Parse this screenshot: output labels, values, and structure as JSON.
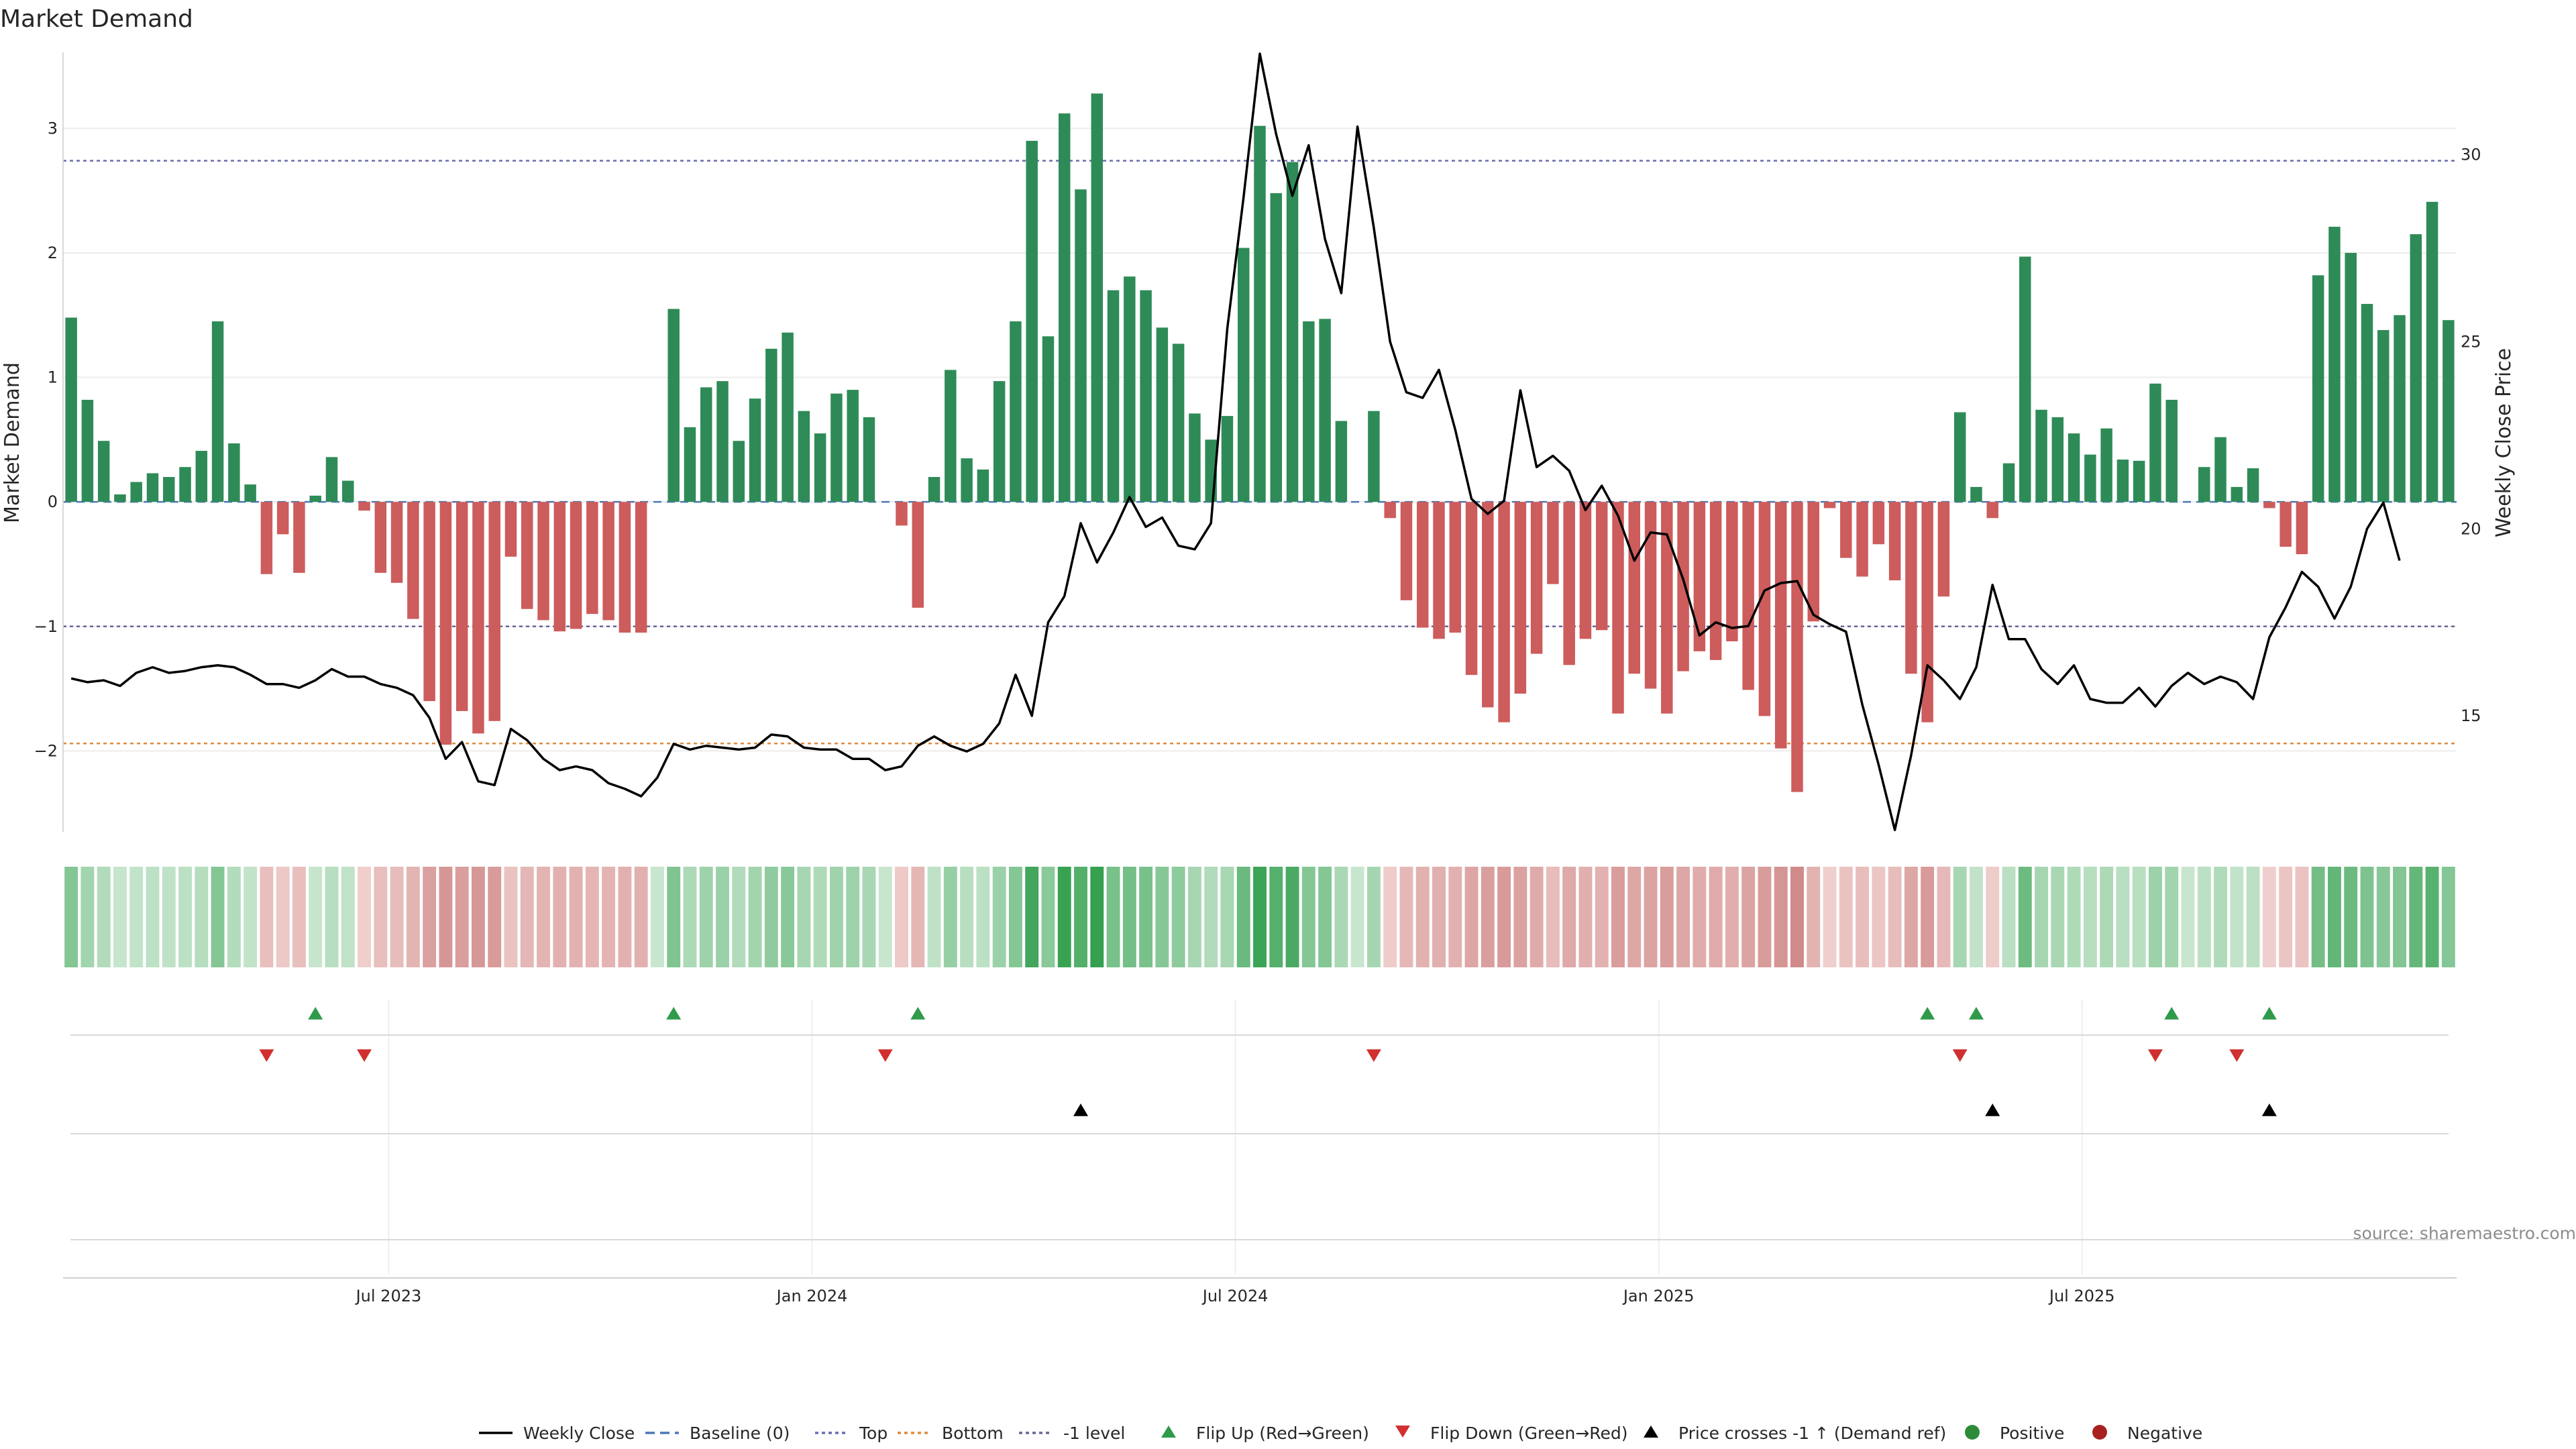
{
  "chart_data": {
    "type": "bar",
    "title": "Market Demand",
    "ylabel": "Market Demand",
    "y2label": "Weekly Close Price",
    "ylim": [
      -2.65,
      3.6
    ],
    "y2lim": [
      11.9,
      32.7
    ],
    "yticks": [
      "−2",
      "−1",
      "0",
      "1",
      "2",
      "3"
    ],
    "y2ticks": [
      "15",
      "20",
      "25",
      "30"
    ],
    "xticks": [
      "Jul 2023",
      "Jan 2024",
      "Jul 2024",
      "Jan 2025",
      "Jul 2025"
    ],
    "grid": true,
    "reference_lines": {
      "baseline": 0,
      "top": 2.74,
      "bottom": -1.94,
      "minus_one_level": -1
    },
    "demand": [
      1.48,
      0.82,
      0.49,
      0.06,
      0.16,
      0.23,
      0.2,
      0.28,
      0.41,
      1.45,
      0.47,
      0.14,
      -0.58,
      -0.26,
      -0.57,
      0.05,
      0.36,
      0.17,
      -0.07,
      -0.57,
      -0.65,
      -0.94,
      -1.6,
      -1.95,
      -1.68,
      -1.86,
      -1.76,
      -0.44,
      -0.86,
      -0.95,
      -1.04,
      -1.02,
      -0.9,
      -0.95,
      -1.05,
      -1.05,
      0,
      1.55,
      0.6,
      0.92,
      0.97,
      0.49,
      0.83,
      1.23,
      1.36,
      0.73,
      0.55,
      0.87,
      0.9,
      0.68,
      0,
      -0.19,
      -0.85,
      0.2,
      1.06,
      0.35,
      0.26,
      0.97,
      1.45,
      2.9,
      1.33,
      3.12,
      2.51,
      3.28,
      1.7,
      1.81,
      1.7,
      1.4,
      1.27,
      0.71,
      0.5,
      0.69,
      2.04,
      3.02,
      2.48,
      2.73,
      1.45,
      1.47,
      0.65,
      0,
      0.73,
      -0.13,
      -0.79,
      -1.01,
      -1.1,
      -1.05,
      -1.39,
      -1.65,
      -1.77,
      -1.54,
      -1.22,
      -0.66,
      -1.31,
      -1.1,
      -1.03,
      -1.7,
      -1.38,
      -1.5,
      -1.7,
      -1.36,
      -1.2,
      -1.27,
      -1.12,
      -1.51,
      -1.72,
      -1.98,
      -2.33,
      -0.96,
      -0.05,
      -0.45,
      -0.6,
      -0.34,
      -0.63,
      -1.38,
      -1.77,
      -0.76,
      0.72,
      0.12,
      -0.13,
      0.31,
      1.97,
      0.74,
      0.68,
      0.55,
      0.38,
      0.59,
      0.34,
      0.33,
      0.95,
      0.82,
      0,
      0.28,
      0.52,
      0.12,
      0.27,
      -0.05,
      -0.36,
      -0.42,
      1.82,
      2.21,
      2.0,
      1.59,
      1.38,
      1.5,
      2.15,
      2.41,
      1.46
    ],
    "series": [
      {
        "name": "Weekly Close",
        "values": [
          16.0,
          15.9,
          15.95,
          15.8,
          16.15,
          16.3,
          16.15,
          16.2,
          16.3,
          16.35,
          16.3,
          16.1,
          15.85,
          15.85,
          15.75,
          15.95,
          16.25,
          16.05,
          16.05,
          15.85,
          15.75,
          15.55,
          14.95,
          13.85,
          14.3,
          13.25,
          13.15,
          14.65,
          14.35,
          13.85,
          13.55,
          13.65,
          13.55,
          13.2,
          13.05,
          12.85,
          13.35,
          14.25,
          14.1,
          14.2,
          14.15,
          14.1,
          14.15,
          14.5,
          14.45,
          14.15,
          14.1,
          14.1,
          13.85,
          13.85,
          13.55,
          13.65,
          14.2,
          14.45,
          14.2,
          14.05,
          14.25,
          14.8,
          16.1,
          15.0,
          17.5,
          18.2,
          20.15,
          19.1,
          19.9,
          20.85,
          20.05,
          20.3,
          19.55,
          19.45,
          20.15,
          25.35,
          28.85,
          32.7,
          30.55,
          28.9,
          30.25,
          27.75,
          26.3,
          30.75,
          28.05,
          25.0,
          23.65,
          23.5,
          24.25,
          22.65,
          20.8,
          20.4,
          20.75,
          23.7,
          21.65,
          21.95,
          21.55,
          20.5,
          21.15,
          20.35,
          19.15,
          19.9,
          19.85,
          18.65,
          17.15,
          17.5,
          17.35,
          17.4,
          18.35,
          18.55,
          18.6,
          17.7,
          17.45,
          17.25,
          15.3,
          13.7,
          11.95,
          13.95,
          16.35,
          15.95,
          15.45,
          16.3,
          18.5,
          17.05,
          17.05,
          16.25,
          15.85,
          16.35,
          15.45,
          15.35,
          15.35,
          15.75,
          15.25,
          15.8,
          16.15,
          15.85,
          16.05,
          15.9,
          15.45,
          17.1,
          17.9,
          18.85,
          18.45,
          17.6,
          18.45,
          20.0,
          20.7,
          19.15
        ]
      }
    ],
    "flip_up_weeks": [
      15,
      37,
      52,
      114,
      117,
      129,
      135
    ],
    "flip_down_weeks": [
      12,
      18,
      50,
      80,
      116,
      128,
      133
    ],
    "price_cross_weeks": [
      62,
      118,
      135
    ],
    "legend": [
      {
        "label": "Weekly Close",
        "symbol": "solid-line",
        "color": "#000000"
      },
      {
        "label": "Baseline (0)",
        "symbol": "dashed-line",
        "color": "#4a78b5"
      },
      {
        "label": "Top",
        "symbol": "dotted-line",
        "color": "#6b6bb0"
      },
      {
        "label": "Bottom",
        "symbol": "dotted-line",
        "color": "#e08a3c"
      },
      {
        "label": "-1 level",
        "symbol": "dotted-line",
        "color": "#666699"
      },
      {
        "label": "Flip Up (Red→Green)",
        "symbol": "triangle-up",
        "color": "#2e9a4a"
      },
      {
        "label": "Flip Down (Green→Red)",
        "symbol": "triangle-down",
        "color": "#d03030"
      },
      {
        "label": "Price crosses -1 ↑ (Demand ref)",
        "symbol": "triangle-up",
        "color": "#000000"
      },
      {
        "label": "Positive",
        "symbol": "circle",
        "color": "#2e8b3a"
      },
      {
        "label": "Negative",
        "symbol": "circle",
        "color": "#a82020"
      }
    ],
    "legend_position": "bottom-center",
    "colors": {
      "positive": "#2e8b57",
      "negative": "#cd5c5c",
      "price": "#000000"
    }
  },
  "source": "source: sharemaestro.com"
}
